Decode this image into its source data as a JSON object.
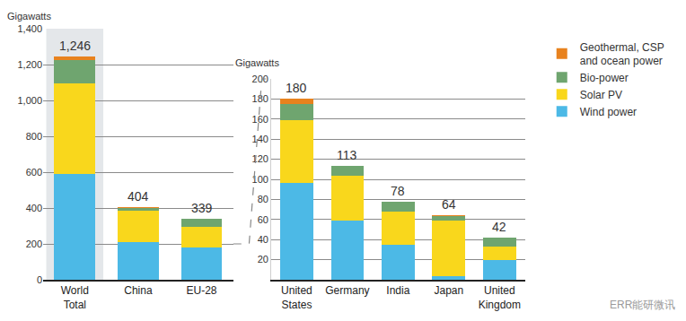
{
  "chart_data": [
    {
      "type": "bar",
      "stacked": true,
      "grid": true,
      "legend": "right",
      "ylabel": "Gigawatts",
      "categories": [
        "World Total",
        "China",
        "EU-28"
      ],
      "series": [
        {
          "name": "Wind power",
          "color": "#4cb9e6",
          "values": [
            591,
            210,
            178
          ]
        },
        {
          "name": "Solar PV",
          "color": "#f9d71c",
          "values": [
            505,
            175,
            117
          ]
        },
        {
          "name": "Bio-power",
          "color": "#6fa56f",
          "values": [
            130,
            17,
            43
          ]
        },
        {
          "name": "Geothermal, CSP and ocean power",
          "color": "#e8821e",
          "values": [
            20,
            2,
            1
          ]
        }
      ],
      "totals": [
        1246,
        404,
        339
      ],
      "total_labels": [
        "1,246",
        "404",
        "339"
      ],
      "ylim": [
        0,
        1400
      ],
      "yticks": [
        0,
        200,
        400,
        600,
        800,
        {
          "value": 1000,
          "label": "1,000"
        },
        {
          "value": 1200,
          "label": "1,200"
        },
        {
          "value": 1400,
          "label": "1,400"
        }
      ]
    },
    {
      "type": "bar",
      "stacked": true,
      "grid": true,
      "ylabel": "Gigawatts",
      "categories": [
        "United States",
        "Germany",
        "India",
        "Japan",
        "United Kingdom"
      ],
      "series": [
        {
          "name": "Wind power",
          "color": "#4cb9e6",
          "values": [
            96,
            59,
            35,
            4,
            20
          ]
        },
        {
          "name": "Solar PV",
          "color": "#f9d71c",
          "values": [
            63,
            45,
            33,
            55,
            13
          ]
        },
        {
          "name": "Bio-power",
          "color": "#6fa56f",
          "values": [
            16,
            9,
            10,
            4,
            9
          ]
        },
        {
          "name": "Geothermal, CSP and ocean power",
          "color": "#e8821e",
          "values": [
            5,
            0,
            0,
            1,
            0
          ]
        }
      ],
      "totals": [
        180,
        113,
        78,
        64,
        42
      ],
      "total_labels": [
        "180",
        "113",
        "78",
        "64",
        "42"
      ],
      "ylim": [
        0,
        200
      ],
      "yticks": [
        20,
        40,
        60,
        80,
        100,
        120,
        140,
        160,
        180,
        200
      ]
    }
  ],
  "watermark": "ERR能研微讯"
}
